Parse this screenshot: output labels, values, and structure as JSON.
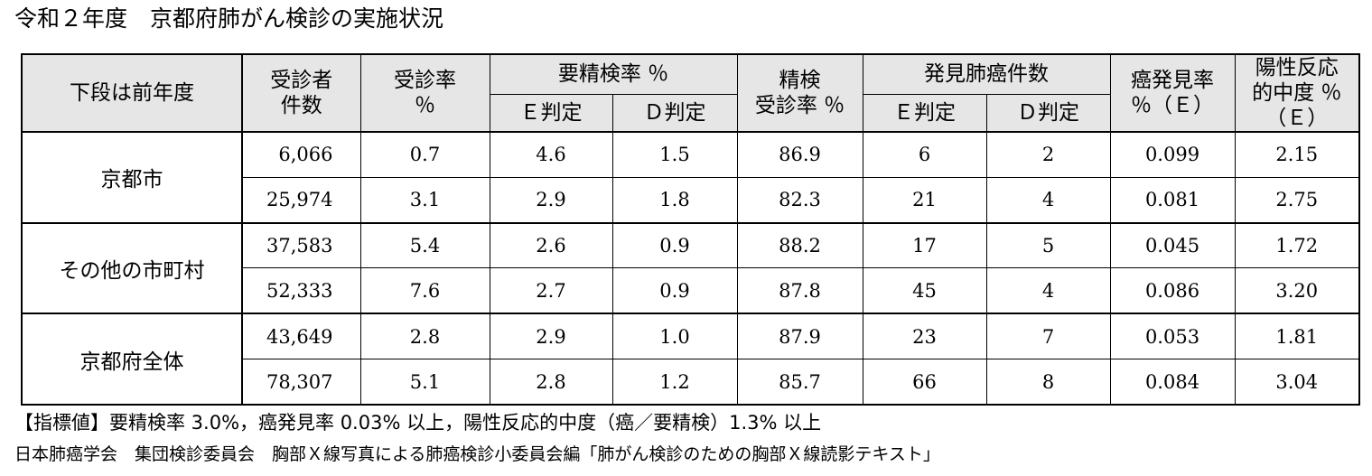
{
  "title": "令和２年度　京都府肺がん検診の実施状況",
  "table": {
    "corner_label": "下段は前年度",
    "headers": {
      "exam_count": "受診者\n件数",
      "exam_rate": "受診率\n％",
      "recall_rate": "要精検率 ％",
      "recall_e": "Ｅ判定",
      "recall_d": "Ｄ判定",
      "followup_rate": "精検\n受診率 ％",
      "cancer_count": "発見肺癌件数",
      "cancer_e": "Ｅ判定",
      "cancer_d": "Ｄ判定",
      "detection_rate": "癌発見率\n％（Ｅ）",
      "ppv": "陽性反応\n的中度 ％\n（Ｅ）"
    },
    "groups": [
      {
        "label": "京都市",
        "rows": [
          [
            "6,066",
            "0.7",
            "4.6",
            "1.5",
            "86.9",
            "6",
            "2",
            "0.099",
            "2.15"
          ],
          [
            "25,974",
            "3.1",
            "2.9",
            "1.8",
            "82.3",
            "21",
            "4",
            "0.081",
            "2.75"
          ]
        ]
      },
      {
        "label": "その他の市町村",
        "rows": [
          [
            "37,583",
            "5.4",
            "2.6",
            "0.9",
            "88.2",
            "17",
            "5",
            "0.045",
            "1.72"
          ],
          [
            "52,333",
            "7.6",
            "2.7",
            "0.9",
            "87.8",
            "45",
            "4",
            "0.086",
            "3.20"
          ]
        ]
      },
      {
        "label": "京都府全体",
        "rows": [
          [
            "43,649",
            "2.8",
            "2.9",
            "1.0",
            "87.9",
            "23",
            "7",
            "0.053",
            "1.81"
          ],
          [
            "78,307",
            "5.1",
            "2.8",
            "1.2",
            "85.7",
            "66",
            "8",
            "0.084",
            "3.04"
          ]
        ]
      }
    ]
  },
  "notes": {
    "indicator": "【指標値】要精検率 3.0%，癌発見率 0.03% 以上，陽性反応的中度（癌／要精検）1.3% 以上",
    "source": "日本肺癌学会　集団検診委員会　胸部Ｘ線写真による肺癌検診小委員会編「肺がん検診のための胸部Ｘ線読影テキスト」"
  }
}
